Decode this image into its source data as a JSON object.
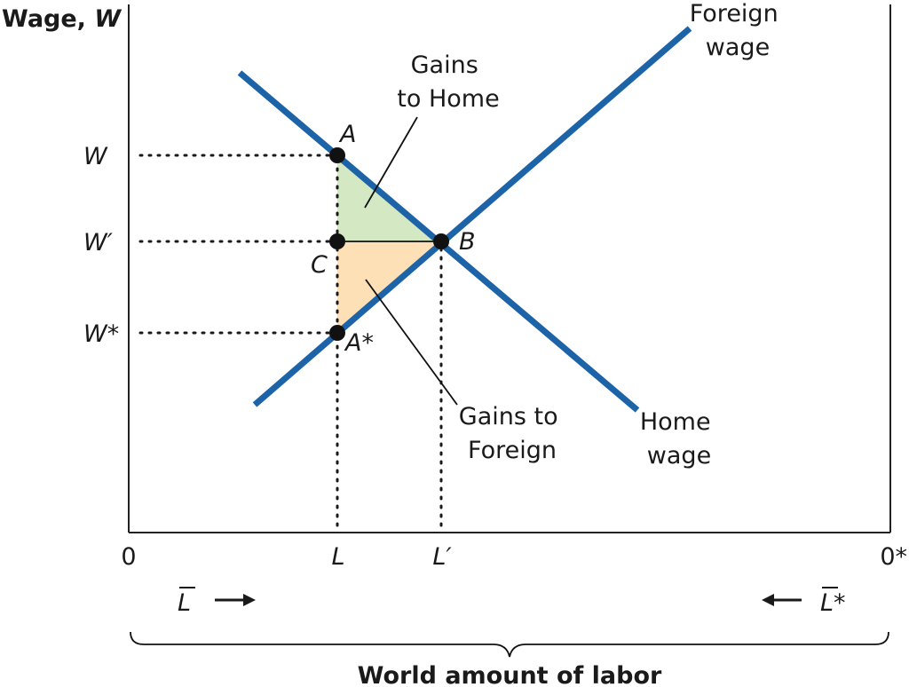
{
  "axis": {
    "y_title_prefix": "Wage, ",
    "y_title_var": "W",
    "x_title": "World amount of labor",
    "origin_home": "0",
    "origin_foreign": "0*",
    "labor_home": "L",
    "labor_foreign": "L*",
    "tick_L": "L",
    "tick_L_prime": "L′"
  },
  "wages": {
    "w": "W",
    "w_prime": "W′",
    "w_star": "W*"
  },
  "points": {
    "a": "A",
    "b": "B",
    "c": "C",
    "a_star": "A*"
  },
  "curves": {
    "foreign_line1": "Foreign",
    "foreign_line2": "wage",
    "home_line1": "Home",
    "home_line2": "wage"
  },
  "regions": {
    "home_line1": "Gains",
    "home_line2": "to Home",
    "foreign_line1": "Gains to",
    "foreign_line2": "Foreign",
    "home_color": "#d5e8c4",
    "foreign_color": "#fde0b5"
  },
  "colors": {
    "curve": "#1c63a8"
  }
}
